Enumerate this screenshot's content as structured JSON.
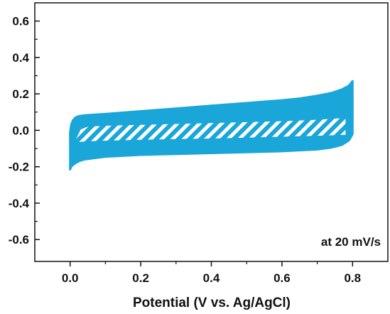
{
  "chart_data": {
    "type": "area",
    "title": "",
    "xlabel": "Potential (V vs. Ag/AgCl)",
    "ylabel": "",
    "xlim": [
      -0.1,
      0.9
    ],
    "ylim": [
      -0.72,
      0.7
    ],
    "x_ticks": [
      0.0,
      0.2,
      0.4,
      0.6,
      0.8
    ],
    "x_tick_labels": [
      "0.0",
      "0.2",
      "0.4",
      "0.6",
      "0.8"
    ],
    "y_ticks": [
      -0.6,
      -0.4,
      -0.2,
      0.0,
      0.2,
      0.4,
      0.6
    ],
    "y_tick_labels": [
      "-0.6",
      "-0.4",
      "-0.2",
      "0.0",
      "0.2",
      "0.4",
      "0.6"
    ],
    "annotation": "at 20 mV/s",
    "grid": false,
    "legend": "none",
    "series": [
      {
        "role": "cv-envelope",
        "color": "#1aa6d9",
        "upper": {
          "x": [
            0.0,
            0.003,
            0.008,
            0.015,
            0.025,
            0.04,
            0.06,
            0.1,
            0.2,
            0.3,
            0.4,
            0.5,
            0.6,
            0.65,
            0.7,
            0.74,
            0.77,
            0.79,
            0.8
          ],
          "y": [
            -0.01,
            0.03,
            0.055,
            0.07,
            0.078,
            0.082,
            0.085,
            0.09,
            0.105,
            0.12,
            0.135,
            0.15,
            0.165,
            0.175,
            0.19,
            0.205,
            0.225,
            0.245,
            0.27
          ]
        },
        "lower": {
          "x": [
            0.8,
            0.79,
            0.77,
            0.74,
            0.7,
            0.6,
            0.5,
            0.4,
            0.3,
            0.2,
            0.1,
            0.06,
            0.04,
            0.025,
            0.015,
            0.008,
            0.003,
            0.0
          ],
          "y": [
            -0.02,
            -0.055,
            -0.08,
            -0.095,
            -0.105,
            -0.115,
            -0.12,
            -0.125,
            -0.13,
            -0.135,
            -0.145,
            -0.155,
            -0.16,
            -0.17,
            -0.18,
            -0.19,
            -0.2,
            -0.215
          ]
        }
      },
      {
        "role": "hatched-region",
        "color": "#ffffff",
        "upper": {
          "x": [
            0.015,
            0.03,
            0.05,
            0.1,
            0.2,
            0.3,
            0.4,
            0.5,
            0.6,
            0.7,
            0.78
          ],
          "y": [
            -0.055,
            0.005,
            0.02,
            0.025,
            0.03,
            0.035,
            0.04,
            0.045,
            0.05,
            0.058,
            0.068
          ]
        },
        "lower": {
          "x": [
            0.78,
            0.7,
            0.6,
            0.5,
            0.4,
            0.3,
            0.2,
            0.1,
            0.05,
            0.03,
            0.015
          ],
          "y": [
            -0.025,
            -0.03,
            -0.035,
            -0.04,
            -0.045,
            -0.048,
            -0.052,
            -0.057,
            -0.06,
            -0.063,
            -0.065
          ]
        }
      }
    ]
  }
}
